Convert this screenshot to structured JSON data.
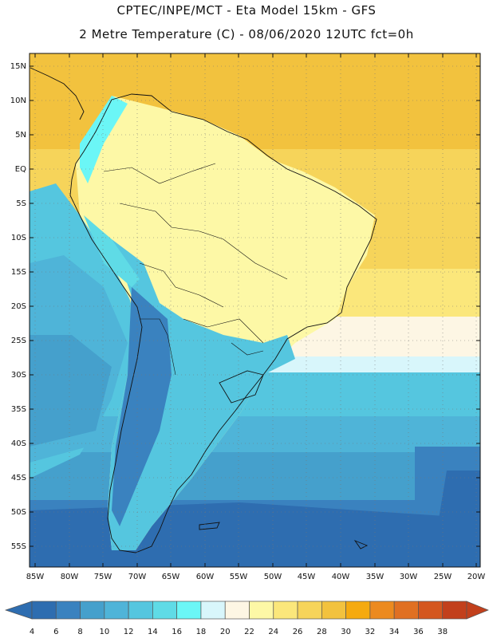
{
  "header": {
    "line1": "CPTEC/INPE/MCT -  Eta Model 15km - GFS",
    "line2": "2 Metre Temperature (C) - 08/06/2020 12UTC fct=0h"
  },
  "map": {
    "lat_labels": [
      "15N",
      "10N",
      "5N",
      "EQ",
      "5S",
      "10S",
      "15S",
      "20S",
      "25S",
      "30S",
      "35S",
      "40S",
      "45S",
      "50S",
      "55S"
    ],
    "lon_labels": [
      "85W",
      "80W",
      "75W",
      "70W",
      "65W",
      "60W",
      "55W",
      "50W",
      "45W",
      "40W",
      "35W",
      "30W",
      "25W",
      "20W"
    ]
  },
  "colorbar": {
    "labels": [
      "4",
      "6",
      "8",
      "10",
      "12",
      "14",
      "16",
      "18",
      "20",
      "22",
      "24",
      "26",
      "28",
      "30",
      "32",
      "34",
      "36",
      "38"
    ],
    "colors": [
      "#2e6db0",
      "#3a82bf",
      "#45a0cc",
      "#4fb4d8",
      "#55c6df",
      "#5fdbe6",
      "#6bf6f6",
      "#d8f6fb",
      "#fdf6e4",
      "#fdf8a6",
      "#fbe77b",
      "#f6d45a",
      "#f2c23e",
      "#f5aa0f",
      "#ec8a1f",
      "#e07022",
      "#d4571f",
      "#c2401c"
    ]
  }
}
